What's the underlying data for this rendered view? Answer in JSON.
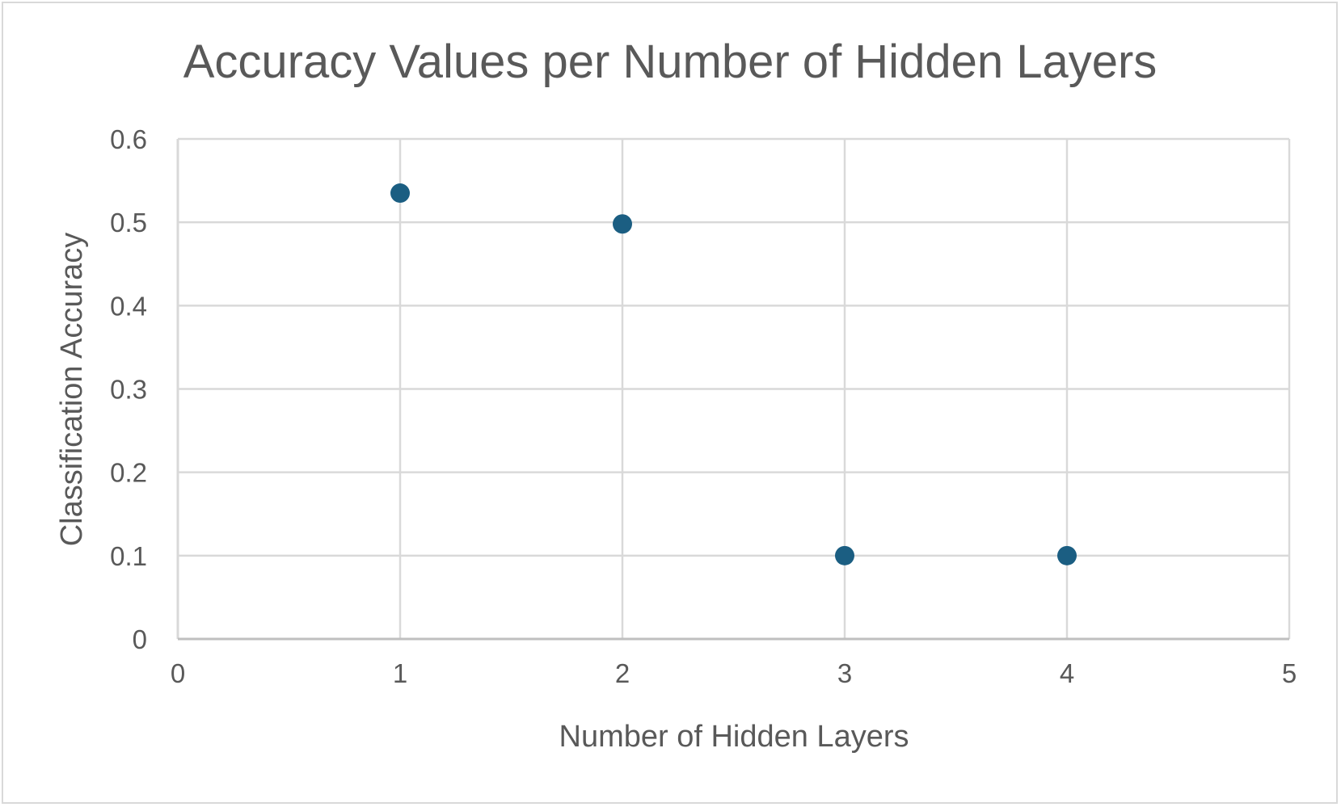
{
  "chart_data": {
    "type": "scatter",
    "title": "Accuracy Values per Number of Hidden Layers",
    "xlabel": "Number of Hidden Layers",
    "ylabel": "Classification Accuracy",
    "xlim": [
      0,
      5
    ],
    "ylim": [
      0,
      0.6
    ],
    "xticks": [
      "0",
      "1",
      "2",
      "3",
      "4",
      "5"
    ],
    "yticks": [
      "0",
      "0.1",
      "0.2",
      "0.3",
      "0.4",
      "0.5",
      "0.6"
    ],
    "grid": true,
    "legend": "none",
    "series": [
      {
        "color": "#1b5e82",
        "points": [
          {
            "x": 1,
            "y": 0.535
          },
          {
            "x": 2,
            "y": 0.498
          },
          {
            "x": 3,
            "y": 0.1
          },
          {
            "x": 4,
            "y": 0.1
          }
        ]
      }
    ]
  }
}
